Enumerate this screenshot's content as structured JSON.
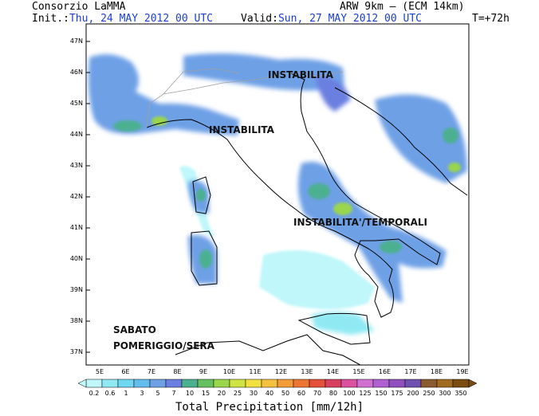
{
  "header": {
    "source": "Consorzio LaMMA",
    "model": "ARW 9km – (ECM 14km)",
    "init_label": "Init.:",
    "init_value": "Thu, 24 MAY 2012  00 UTC",
    "valid_label": "Valid:",
    "valid_value": "Sun, 27 MAY 2012  00 UTC",
    "forecast_step": "T=+72h"
  },
  "annotations": [
    {
      "id": "instabilita-north",
      "text": "INSTABILITA"
    },
    {
      "id": "instabilita-liguria",
      "text": "INSTABILITA"
    },
    {
      "id": "instabilita-temporali",
      "text": "INSTABILITA'/TEMPORALI"
    },
    {
      "id": "sabato-1",
      "text": "SABATO"
    },
    {
      "id": "sabato-2",
      "text": "POMERIGGIO/SERA"
    }
  ],
  "axes": {
    "latitudes": [
      "47N",
      "46N",
      "45N",
      "44N",
      "43N",
      "42N",
      "41N",
      "40N",
      "39N",
      "38N",
      "37N"
    ],
    "longitudes": [
      "5E",
      "6E",
      "7E",
      "8E",
      "9E",
      "10E",
      "11E",
      "12E",
      "13E",
      "14E",
      "15E",
      "16E",
      "17E",
      "18E",
      "19E"
    ]
  },
  "colorbar": {
    "title": "Total Precipitation [mm/12h]",
    "labels": [
      "0.2",
      "0.6",
      "1",
      "3",
      "5",
      "7",
      "10",
      "15",
      "20",
      "25",
      "30",
      "40",
      "50",
      "60",
      "70",
      "80",
      "100",
      "125",
      "150",
      "175",
      "200",
      "250",
      "300",
      "350"
    ],
    "colors": [
      "#bff7fa",
      "#8fe9f3",
      "#6fd7ef",
      "#64bdec",
      "#6ea0e6",
      "#6a7fe0",
      "#4bb090",
      "#67c060",
      "#9ad64c",
      "#cfe440",
      "#f0e040",
      "#f4c040",
      "#f29c38",
      "#ee7634",
      "#e4503a",
      "#d84060",
      "#dc50a0",
      "#d070d0",
      "#b060d0",
      "#9050c0",
      "#7050b0",
      "#8a5a30",
      "#a06a20",
      "#7a4c10"
    ]
  },
  "map": {
    "region": "Italy",
    "ocean_color": "#ffffff",
    "coastline_color": "#000000",
    "border_color": "#a0a0a0"
  }
}
